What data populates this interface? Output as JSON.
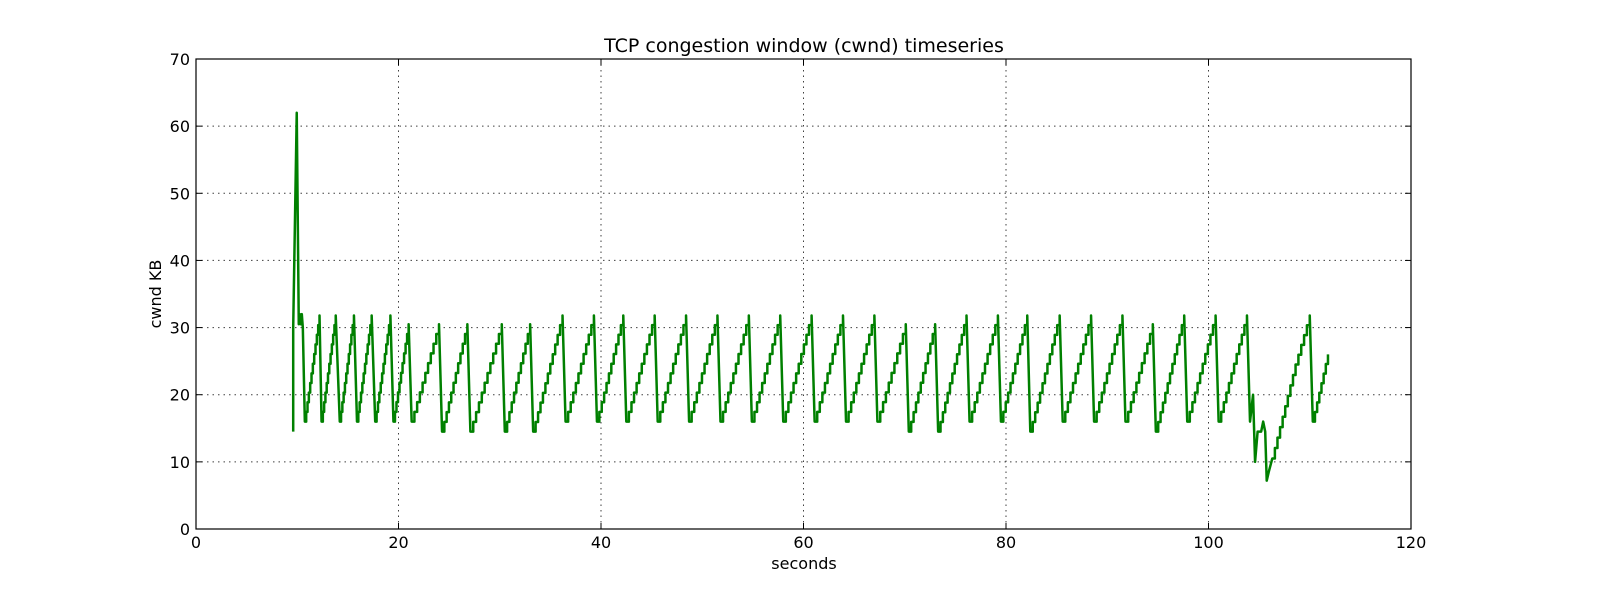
{
  "chart_data": {
    "type": "line",
    "title": "TCP congestion window (cwnd) timeseries",
    "xlabel": "seconds",
    "ylabel": "cwnd KB",
    "xlim": [
      0,
      120
    ],
    "ylim": [
      0,
      70
    ],
    "xticks": [
      0,
      20,
      40,
      60,
      80,
      100,
      120
    ],
    "yticks": [
      0,
      10,
      20,
      30,
      40,
      50,
      60,
      70
    ],
    "grid": true,
    "legend": "none",
    "series": [
      {
        "color": "#008000",
        "x": [
          9.6,
          9.6,
          9.95,
          10.15,
          10.25,
          10.35,
          10.45,
          10.55,
          10.75,
          12.2,
          12.4,
          13.8,
          14.2,
          15.6,
          15.9,
          17.35,
          17.7,
          19.2,
          19.5,
          21.0,
          21.3,
          24.0,
          24.3,
          26.8,
          27.1,
          30.2,
          30.5,
          33.0,
          33.3,
          36.2,
          36.5,
          39.3,
          39.6,
          42.2,
          42.5,
          45.3,
          45.6,
          48.4,
          48.7,
          51.5,
          51.8,
          54.6,
          54.9,
          57.7,
          58.0,
          60.8,
          61.1,
          63.9,
          64.2,
          67.0,
          67.3,
          70.1,
          70.4,
          73.0,
          73.3,
          76.1,
          76.4,
          79.2,
          79.5,
          82.1,
          82.4,
          85.3,
          85.6,
          88.4,
          88.7,
          91.5,
          91.8,
          94.5,
          94.8,
          97.6,
          97.9,
          100.7,
          101.0,
          103.8,
          104.1,
          104.4,
          104.6,
          104.85,
          105.2,
          105.4,
          105.6,
          105.75,
          105.95,
          106.3,
          108.6,
          110.0,
          110.3,
          111.8
        ],
        "y": [
          14.5,
          30.0,
          62.0,
          30.5,
          32.0,
          30.5,
          32.0,
          30.0,
          16.0,
          31.8,
          16.0,
          31.8,
          16.0,
          31.8,
          16.0,
          31.8,
          16.0,
          31.8,
          16.0,
          30.5,
          16.0,
          30.5,
          14.5,
          30.5,
          14.5,
          30.5,
          14.5,
          30.5,
          14.5,
          31.8,
          16.0,
          31.8,
          16.0,
          31.8,
          16.0,
          31.8,
          16.0,
          31.8,
          16.0,
          31.8,
          16.0,
          31.8,
          16.0,
          31.8,
          16.0,
          31.8,
          16.0,
          31.8,
          16.0,
          31.8,
          16.0,
          30.5,
          14.5,
          30.5,
          14.5,
          31.8,
          16.0,
          31.8,
          16.0,
          31.8,
          14.5,
          31.8,
          16.0,
          31.8,
          16.0,
          31.8,
          16.0,
          30.5,
          14.5,
          31.8,
          16.0,
          31.8,
          16.0,
          31.8,
          16.0,
          20.0,
          10.0,
          14.5,
          14.5,
          16.0,
          14.5,
          7.2,
          8.5,
          10.5,
          24.5,
          31.8,
          16.0,
          26.0
        ]
      }
    ]
  }
}
